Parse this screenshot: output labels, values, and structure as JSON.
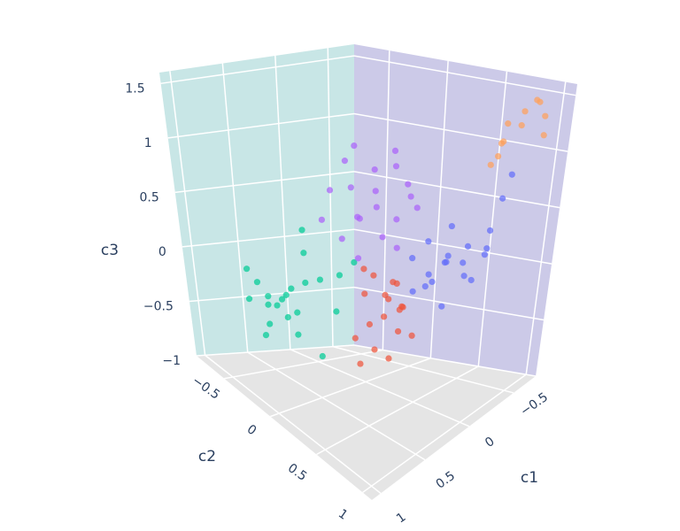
{
  "chart_data": {
    "type": "scatter3d",
    "x_label": "c1",
    "y_label": "c2",
    "z_label": "c3",
    "xlim": [
      -0.75,
      1.1
    ],
    "ylim": [
      -0.8,
      1.1
    ],
    "zlim": [
      -1,
      1.6
    ],
    "xticks": [
      {
        "value": -0.5,
        "label": "−0.5"
      },
      0,
      0.5,
      1
    ],
    "yticks": [
      {
        "value": -0.5,
        "label": "−0.5"
      },
      0,
      0.5,
      1
    ],
    "zticks": [
      {
        "value": -1,
        "label": "−1"
      },
      {
        "value": -0.5,
        "label": "−0.5"
      },
      0,
      0.5,
      1,
      1.5
    ],
    "series": [
      {
        "color": "#00cc96",
        "x": [
          0.6,
          0.7,
          0.55,
          0.65,
          0.75,
          0.5,
          0.8,
          0.6,
          0.7,
          0.45,
          0.55,
          0.85,
          0.65,
          0.4,
          0.3,
          0.2,
          0.9,
          0.6,
          0.35,
          0.75,
          0.5,
          0.25
        ],
        "y": [
          -0.3,
          -0.35,
          -0.25,
          -0.2,
          -0.3,
          -0.35,
          -0.25,
          -0.15,
          -0.45,
          -0.2,
          -0.4,
          -0.4,
          -0.1,
          -0.1,
          0.0,
          0.05,
          -0.2,
          0.1,
          -0.3,
          -0.5,
          0.15,
          -0.4
        ],
        "z": [
          -0.3,
          -0.35,
          -0.2,
          -0.4,
          -0.25,
          -0.3,
          -0.45,
          -0.35,
          -0.2,
          -0.15,
          -0.4,
          -0.3,
          -0.5,
          -0.1,
          -0.05,
          0.05,
          -0.5,
          -0.6,
          0.05,
          -0.1,
          -0.25,
          0.2
        ]
      },
      {
        "color": "#ab63fa",
        "x": [
          -0.3,
          -0.4,
          -0.2,
          -0.1,
          -0.45,
          -0.3,
          -0.15,
          -0.5,
          0.0,
          -0.25,
          -0.35,
          0.05,
          -0.1,
          -0.55,
          -0.2,
          0.1,
          -0.4,
          -0.05,
          0.15,
          -0.3
        ],
        "y": [
          -0.2,
          -0.3,
          -0.1,
          -0.25,
          -0.15,
          0.0,
          -0.35,
          -0.05,
          -0.1,
          -0.3,
          0.05,
          -0.2,
          0.05,
          -0.25,
          0.1,
          0.0,
          0.1,
          -0.4,
          -0.3,
          -0.4
        ],
        "z": [
          0.5,
          0.65,
          0.4,
          0.55,
          0.7,
          0.3,
          0.75,
          0.45,
          0.35,
          0.25,
          0.6,
          0.15,
          0.2,
          0.8,
          0.1,
          0.05,
          0.4,
          0.5,
          0.3,
          0.85
        ]
      },
      {
        "color": "#636efa",
        "x": [
          -0.4,
          -0.3,
          -0.5,
          -0.2,
          -0.35,
          -0.45,
          -0.25,
          -0.55,
          -0.1,
          -0.4,
          -0.3,
          -0.6,
          -0.15,
          -0.5,
          -0.6,
          -0.65,
          -0.55,
          -0.2,
          -0.7,
          -0.05
        ],
        "y": [
          0.4,
          0.5,
          0.3,
          0.45,
          0.6,
          0.55,
          0.35,
          0.45,
          0.5,
          0.65,
          0.3,
          0.6,
          0.6,
          0.7,
          0.7,
          0.72,
          0.3,
          0.25,
          0.5,
          0.4
        ],
        "z": [
          0.0,
          0.1,
          -0.05,
          -0.1,
          0.05,
          0.15,
          0.2,
          -0.15,
          0.0,
          -0.1,
          -0.2,
          0.1,
          -0.25,
          0.3,
          0.55,
          0.75,
          0.25,
          0.05,
          0.0,
          -0.15
        ]
      },
      {
        "color": "#ef553b",
        "x": [
          0.1,
          0.2,
          0.0,
          0.15,
          0.3,
          0.05,
          0.25,
          0.35,
          0.1,
          0.2,
          -0.05,
          0.4,
          0.3,
          0.15,
          0.45,
          0.05,
          0.25,
          -0.1
        ],
        "y": [
          0.3,
          0.35,
          0.25,
          0.45,
          0.3,
          0.4,
          0.2,
          0.4,
          0.15,
          0.5,
          0.3,
          0.25,
          0.5,
          0.1,
          0.35,
          0.5,
          0.4,
          0.2
        ],
        "z": [
          -0.2,
          -0.3,
          -0.1,
          -0.4,
          -0.35,
          -0.25,
          -0.15,
          -0.5,
          -0.05,
          -0.2,
          -0.3,
          -0.45,
          -0.55,
          0.0,
          -0.6,
          -0.45,
          -0.1,
          -0.15
        ]
      },
      {
        "color": "#ffa15a",
        "x": [
          -0.6,
          -0.5,
          -0.55,
          -0.65,
          -0.45,
          -0.7,
          -0.5,
          -0.6,
          -0.4,
          -0.65,
          -0.55
        ],
        "y": [
          0.8,
          0.9,
          0.7,
          0.95,
          0.75,
          0.85,
          0.65,
          1.0,
          0.85,
          0.6,
          0.95
        ],
        "z": [
          1.2,
          1.35,
          1.05,
          1.3,
          0.95,
          1.4,
          0.85,
          1.15,
          1.25,
          1.0,
          1.45
        ]
      }
    ]
  }
}
